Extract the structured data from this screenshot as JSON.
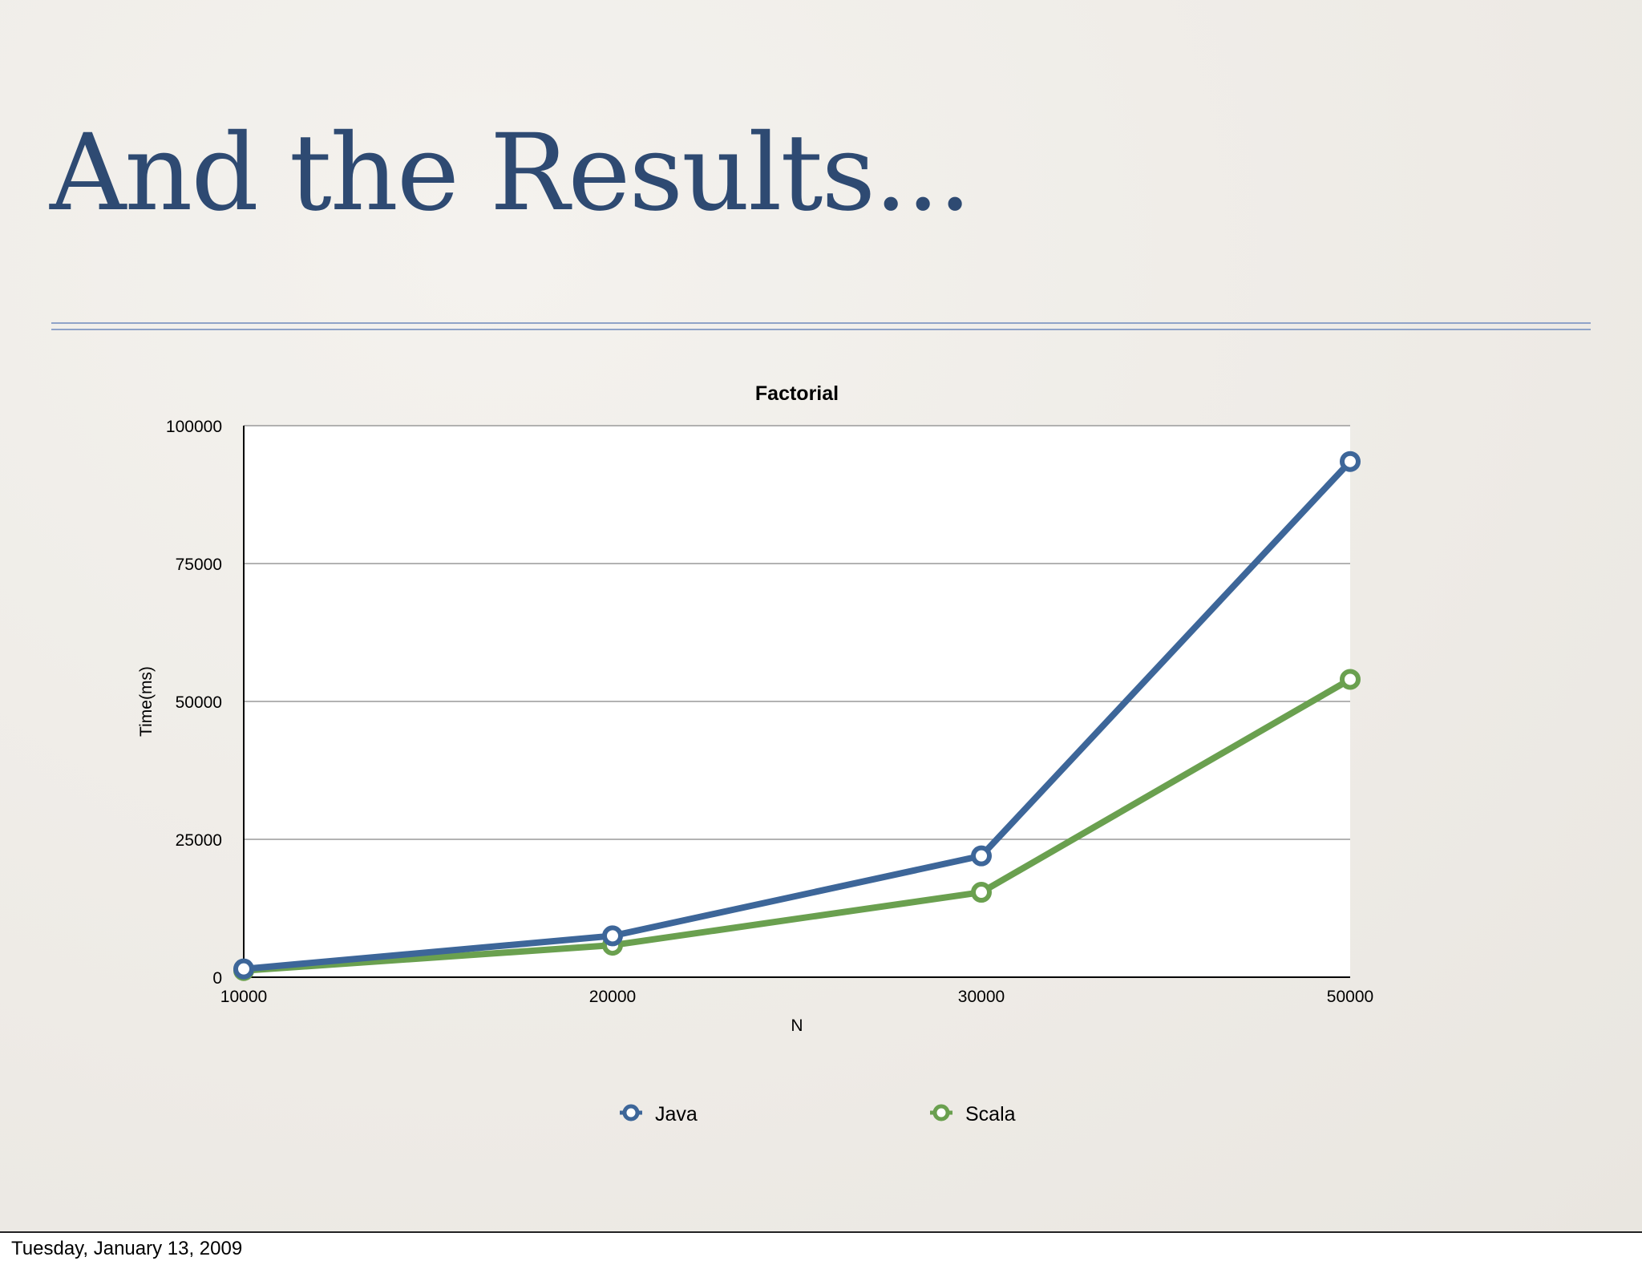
{
  "slide": {
    "title": "And the Results...",
    "footer_date": "Tuesday, January 13, 2009"
  },
  "chart_data": {
    "type": "line",
    "title": "Factorial",
    "xlabel": "N",
    "ylabel": "Time(ms)",
    "categories": [
      "10000",
      "20000",
      "30000",
      "50000"
    ],
    "ylim": [
      0,
      100000
    ],
    "yticks": [
      0,
      25000,
      50000,
      75000,
      100000
    ],
    "ytick_labels": [
      "0",
      "25000",
      "50000",
      "75000",
      "100000"
    ],
    "grid": true,
    "legend_position": "bottom",
    "series": [
      {
        "name": "Java",
        "color": "#3d6699",
        "values": [
          1500,
          7500,
          22000,
          93500
        ]
      },
      {
        "name": "Scala",
        "color": "#6aa04f",
        "values": [
          1200,
          5800,
          15400,
          54000
        ]
      }
    ]
  }
}
